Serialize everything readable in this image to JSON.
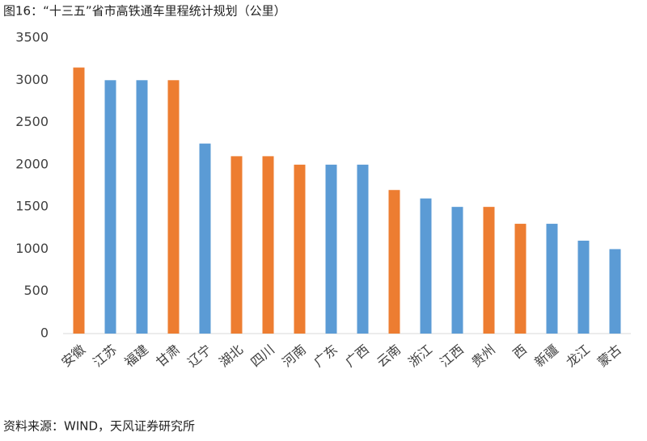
{
  "chart_data": {
    "type": "bar",
    "title": "图16：“十三五”省市高铁通车里程统计规划（公里）",
    "source": "资料来源：WIND，天风证券研究所",
    "categories": [
      "安徽",
      "江苏",
      "福建",
      "甘肃",
      "辽宁",
      "湖北",
      "四川",
      "河南",
      "广东",
      "广西",
      "云南",
      "浙江",
      "江西",
      "贵州",
      "西",
      "新疆",
      "龙江",
      "蒙古"
    ],
    "values": [
      3150,
      3000,
      3000,
      3000,
      2250,
      2100,
      2100,
      2000,
      2000,
      2000,
      1700,
      1600,
      1500,
      1500,
      1300,
      1300,
      1100,
      1000
    ],
    "colors": [
      "#ed7d31",
      "#5b9bd5",
      "#5b9bd5",
      "#ed7d31",
      "#5b9bd5",
      "#ed7d31",
      "#ed7d31",
      "#ed7d31",
      "#5b9bd5",
      "#5b9bd5",
      "#ed7d31",
      "#5b9bd5",
      "#5b9bd5",
      "#ed7d31",
      "#ed7d31",
      "#5b9bd5",
      "#5b9bd5",
      "#5b9bd5"
    ],
    "ylim": [
      0,
      3500
    ],
    "yticks": [
      0,
      500,
      1000,
      1500,
      2000,
      2500,
      3000,
      3500
    ],
    "grid": false
  }
}
